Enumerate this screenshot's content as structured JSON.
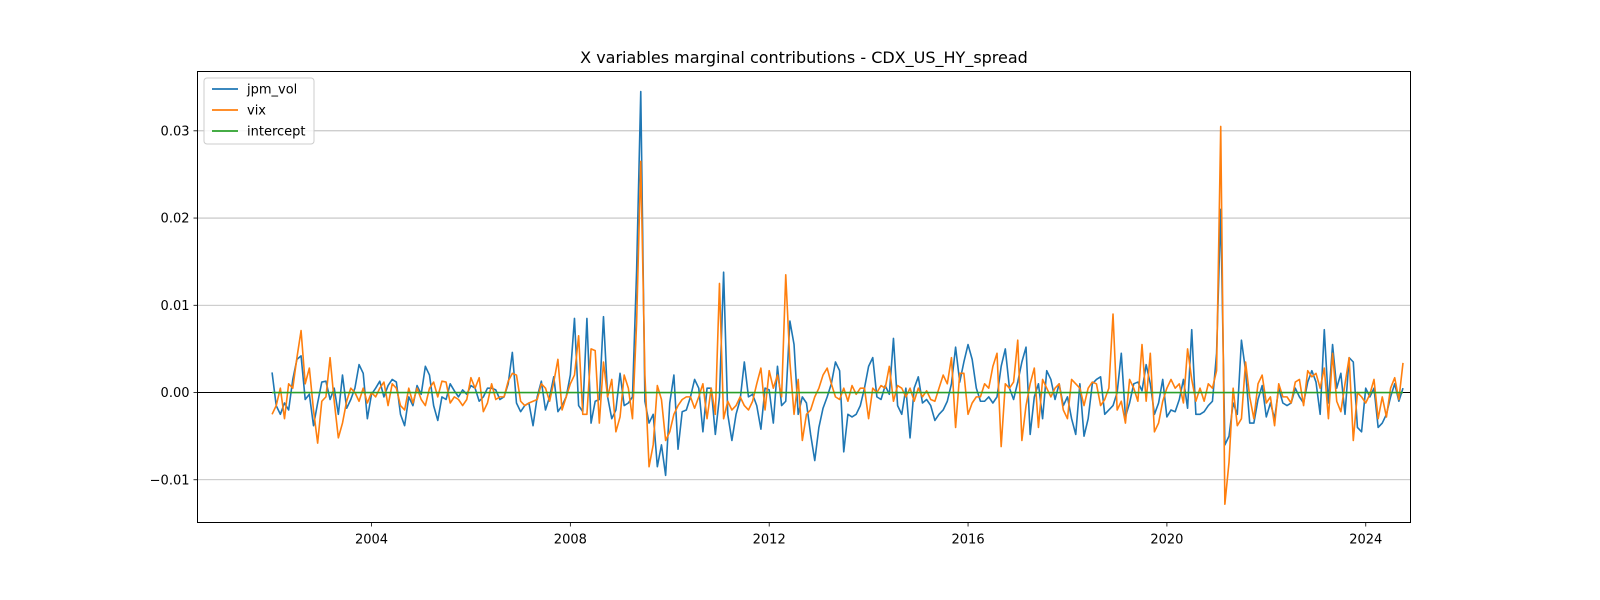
{
  "chart_data": {
    "type": "line",
    "title": "X variables marginal contributions - CDX_US_HY_spread",
    "xlabel": "",
    "ylabel": "",
    "xlim": [
      2000.5,
      2024.9
    ],
    "ylim": [
      -0.0149,
      0.0368
    ],
    "x_ticks": [
      2004,
      2008,
      2012,
      2016,
      2020,
      2024
    ],
    "y_ticks": [
      {
        "value": -0.01,
        "label": "−0.01"
      },
      {
        "value": 0.0,
        "label": "0.00"
      },
      {
        "value": 0.01,
        "label": "0.01"
      },
      {
        "value": 0.02,
        "label": "0.02"
      },
      {
        "value": 0.03,
        "label": "0.03"
      }
    ],
    "grid": {
      "y": true,
      "x": false
    },
    "zero_line": true,
    "legend_position": "upper-left",
    "x_start": 2002.0,
    "x_step": 0.08333,
    "series": [
      {
        "name": "jpm_vol",
        "color": "#1f77b4",
        "values": [
          0.0023,
          -0.0015,
          -0.0025,
          -0.0012,
          -0.002,
          0.0015,
          0.0038,
          0.0042,
          -0.0008,
          -0.0002,
          -0.0038,
          -0.0012,
          0.0012,
          0.0013,
          -0.0008,
          0.0005,
          -0.0025,
          0.002,
          -0.0018,
          -0.0008,
          0.0005,
          0.0032,
          0.0022,
          -0.003,
          -0.0002,
          0.0005,
          0.0013,
          -0.0005,
          0.0008,
          0.0015,
          0.0012,
          -0.0025,
          -0.0038,
          -0.0005,
          -0.0015,
          0.0008,
          -0.0002,
          0.003,
          0.002,
          -0.0015,
          -0.0032,
          -0.0005,
          -0.0008,
          0.001,
          0.0002,
          -0.0005,
          0.0003,
          -0.0002,
          0.0008,
          0.0005,
          -0.001,
          -0.0005,
          0.0005,
          0.0005,
          0.0003,
          -0.0008,
          -0.0005,
          0.001,
          0.0046,
          -0.0012,
          -0.0022,
          -0.0015,
          -0.0012,
          -0.0038,
          -0.0005,
          0.0013,
          -0.002,
          -0.0005,
          0.0018,
          -0.0022,
          -0.0015,
          -0.0005,
          0.002,
          0.0085,
          -0.0015,
          -0.0022,
          0.0085,
          -0.0035,
          -0.001,
          -0.0008,
          0.0087,
          -0.0005,
          -0.003,
          -0.002,
          0.0022,
          -0.0015,
          -0.0012,
          -0.0005,
          0.014,
          0.0345,
          -0.001,
          -0.0035,
          -0.0025,
          -0.0085,
          -0.006,
          -0.0095,
          -0.0012,
          0.002,
          -0.0065,
          -0.0022,
          -0.002,
          -0.0005,
          0.0015,
          0.0005,
          -0.0045,
          0.0005,
          0.0005,
          -0.0048,
          -0.0005,
          0.0138,
          -0.0025,
          -0.0055,
          -0.0025,
          -0.0008,
          0.0035,
          -0.0005,
          -0.0002,
          -0.0015,
          -0.0042,
          0.0005,
          0.0003,
          -0.0035,
          0.003,
          -0.0015,
          -0.001,
          0.0082,
          0.0055,
          -0.0025,
          -0.0005,
          -0.0012,
          -0.0048,
          -0.0078,
          -0.004,
          -0.0018,
          -0.0005,
          0.001,
          0.0035,
          0.0025,
          -0.0068,
          -0.0025,
          -0.0028,
          -0.0025,
          -0.0015,
          0.0005,
          0.003,
          0.004,
          -0.0005,
          -0.0008,
          0.0008,
          -0.0002,
          0.0062,
          -0.0015,
          -0.0025,
          0.0005,
          -0.0052,
          0.0005,
          0.0018,
          -0.0012,
          -0.0008,
          -0.0015,
          -0.0032,
          -0.0025,
          -0.002,
          -0.001,
          0.001,
          0.0052,
          0.0012,
          0.0035,
          0.0055,
          0.0038,
          0.0005,
          -0.001,
          -0.001,
          -0.0005,
          -0.0012,
          -0.0005,
          0.003,
          0.005,
          0.0005,
          -0.0008,
          0.0012,
          0.0035,
          0.0052,
          -0.0048,
          -0.0005,
          0.001,
          -0.003,
          0.0025,
          0.0015,
          -0.0008,
          0.001,
          -0.0015,
          -0.0005,
          -0.003,
          -0.0048,
          0.001,
          -0.005,
          -0.003,
          0.001,
          0.0015,
          0.0018,
          -0.0025,
          -0.002,
          -0.0015,
          0.0,
          0.0045,
          -0.0028,
          -0.0012,
          0.001,
          0.0012,
          0.0002,
          0.0032,
          0.001,
          -0.0025,
          -0.0012,
          0.0015,
          -0.0028,
          -0.002,
          -0.0022,
          -0.0008,
          0.0015,
          -0.0018,
          0.0072,
          -0.0025,
          -0.0025,
          -0.0022,
          -0.0015,
          -0.001,
          0.0045,
          0.021,
          -0.006,
          -0.005,
          -0.0012,
          -0.0025,
          0.006,
          0.0025,
          -0.0035,
          -0.0035,
          -0.0008,
          0.0008,
          -0.0028,
          -0.0012,
          -0.003,
          0.0005,
          -0.0012,
          -0.0015,
          -0.0012,
          0.0005,
          -0.0005,
          -0.0012,
          0.0012,
          0.0025,
          0.0012,
          -0.0025,
          0.0072,
          -0.0012,
          0.0055,
          0.0005,
          0.0022,
          -0.0025,
          0.004,
          0.0035,
          -0.004,
          -0.0045,
          0.0005,
          -0.0005,
          0.0005,
          -0.004,
          -0.0035,
          -0.0025,
          -0.0005,
          0.001,
          -0.001,
          0.0005
        ]
      },
      {
        "name": "vix",
        "color": "#ff7f0e",
        "values": [
          -0.0025,
          -0.0015,
          0.0005,
          -0.003,
          0.001,
          0.0005,
          0.004,
          0.0071,
          0.001,
          0.0028,
          -0.002,
          -0.0058,
          -0.001,
          -0.0005,
          0.004,
          -0.001,
          -0.0052,
          -0.0035,
          -0.001,
          0.0005,
          0.0,
          -0.001,
          0.0005,
          -0.0012,
          0.0,
          -0.0005,
          0.0005,
          0.0012,
          -0.0015,
          0.001,
          0.0005,
          -0.0015,
          -0.002,
          0.0005,
          -0.0012,
          0.0005,
          -0.0008,
          -0.0015,
          0.0005,
          0.0012,
          -0.0005,
          0.0013,
          0.0012,
          -0.0012,
          -0.0005,
          -0.0008,
          -0.0015,
          -0.0008,
          0.0017,
          0.0005,
          0.0017,
          -0.0022,
          -0.0012,
          0.001,
          -0.0008,
          -0.0005,
          -0.0005,
          0.0013,
          0.0022,
          0.002,
          -0.001,
          -0.0015,
          -0.0012,
          -0.001,
          -0.0008,
          0.001,
          0.0005,
          -0.001,
          0.0012,
          0.0038,
          -0.002,
          -0.0005,
          0.001,
          0.002,
          0.0065,
          -0.0025,
          -0.0025,
          0.005,
          0.0048,
          -0.0035,
          0.0035,
          -0.0005,
          0.0015,
          -0.0045,
          -0.0028,
          0.002,
          0.0005,
          -0.003,
          0.008,
          0.0265,
          0.002,
          -0.0085,
          -0.006,
          0.0008,
          -0.0008,
          -0.0055,
          -0.0045,
          -0.0025,
          -0.0015,
          -0.0008,
          -0.0005,
          -0.0005,
          -0.0018,
          -0.0005,
          0.001,
          -0.003,
          0.0005,
          -0.0025,
          0.0125,
          -0.003,
          -0.001,
          -0.002,
          -0.0015,
          -0.0005,
          -0.0015,
          -0.002,
          -0.001,
          0.001,
          0.0028,
          -0.002,
          0.0025,
          0.0005,
          0.002,
          -0.0005,
          0.0135,
          0.0035,
          -0.0025,
          0.0015,
          -0.0055,
          -0.0025,
          -0.002,
          -0.0005,
          0.0005,
          0.002,
          0.0028,
          0.001,
          -0.0005,
          -0.0008,
          0.0005,
          -0.001,
          0.0008,
          -0.0002,
          0.0005,
          0.0005,
          -0.003,
          0.0005,
          0.0,
          0.0008,
          0.0005,
          0.003,
          -0.001,
          0.0008,
          0.0005,
          -0.0005,
          0.0005,
          -0.001,
          0.0005,
          -0.0005,
          0.0002,
          -0.0008,
          -0.001,
          0.0005,
          0.002,
          0.001,
          0.004,
          -0.004,
          0.0022,
          0.0022,
          -0.0025,
          -0.0012,
          -0.0005,
          -0.0005,
          0.001,
          0.0005,
          0.003,
          0.0045,
          -0.0062,
          0.001,
          0.0005,
          0.0012,
          0.006,
          -0.0055,
          -0.0015,
          0.001,
          0.0028,
          -0.004,
          0.0015,
          0.0005,
          -0.0005,
          0.0005,
          0.001,
          -0.002,
          -0.003,
          0.0015,
          0.001,
          0.0005,
          -0.0015,
          0.0005,
          0.0012,
          0.001,
          -0.0015,
          -0.0008,
          0.0005,
          0.009,
          -0.002,
          -0.001,
          -0.0035,
          0.0015,
          0.0005,
          -0.001,
          0.0055,
          -0.001,
          0.0045,
          -0.0045,
          -0.0035,
          -0.001,
          0.0005,
          0.0015,
          0.0005,
          0.001,
          -0.0012,
          0.005,
          0.0015,
          -0.001,
          0.0005,
          -0.001,
          0.001,
          0.0005,
          0.0025,
          0.0305,
          -0.0128,
          -0.008,
          0.0005,
          -0.0038,
          -0.003,
          0.0035,
          -0.0005,
          -0.003,
          0.001,
          0.002,
          -0.0012,
          -0.0005,
          -0.0038,
          0.001,
          -0.0005,
          -0.0005,
          -0.0012,
          0.0012,
          0.0015,
          -0.0015,
          0.0025,
          0.0018,
          0.0022,
          0.0005,
          0.0028,
          -0.003,
          0.0045,
          -0.001,
          -0.0022,
          0.001,
          0.004,
          -0.0055,
          0.0,
          -0.0005,
          -0.0012,
          -0.0002,
          0.0015,
          -0.003,
          -0.0005,
          -0.0028,
          0.0005,
          0.0017,
          -0.0008,
          0.0034
        ]
      },
      {
        "name": "intercept",
        "color": "#2ca02c",
        "values": [
          0,
          0
        ]
      }
    ]
  }
}
